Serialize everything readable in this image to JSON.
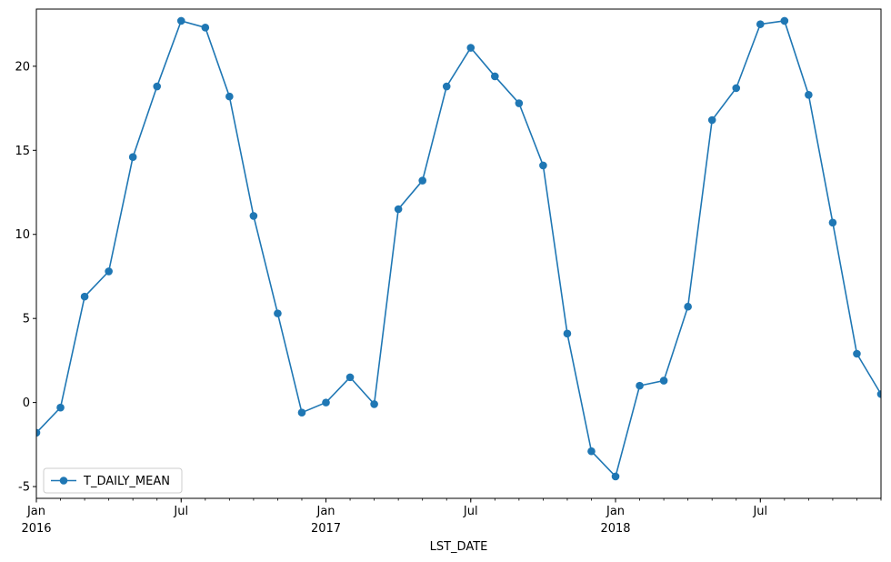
{
  "chart_data": {
    "type": "line",
    "xlabel": "LST_DATE",
    "ylabel": "",
    "x_range": [
      "2016-01",
      "2018-12"
    ],
    "ylim": [
      -5.7,
      23.4
    ],
    "y_ticks": [
      -5,
      0,
      5,
      10,
      15,
      20
    ],
    "x_major_ticks": [
      {
        "date": "2016-01",
        "label": "Jan",
        "sublabel": "2016"
      },
      {
        "date": "2016-07",
        "label": "Jul",
        "sublabel": ""
      },
      {
        "date": "2017-01",
        "label": "Jan",
        "sublabel": "2017"
      },
      {
        "date": "2017-07",
        "label": "Jul",
        "sublabel": ""
      },
      {
        "date": "2018-01",
        "label": "Jan",
        "sublabel": "2018"
      },
      {
        "date": "2018-07",
        "label": "Jul",
        "sublabel": ""
      }
    ],
    "grid": false,
    "legend": {
      "placement": "lower-left"
    },
    "series": [
      {
        "name": "T_DAILY_MEAN",
        "color": "#1f77b4",
        "marker": "circle",
        "x": [
          "2016-01",
          "2016-02",
          "2016-03",
          "2016-04",
          "2016-05",
          "2016-06",
          "2016-07",
          "2016-08",
          "2016-09",
          "2016-10",
          "2016-11",
          "2016-12",
          "2017-01",
          "2017-02",
          "2017-03",
          "2017-04",
          "2017-05",
          "2017-06",
          "2017-07",
          "2017-08",
          "2017-09",
          "2017-10",
          "2017-11",
          "2017-12",
          "2018-01",
          "2018-02",
          "2018-03",
          "2018-04",
          "2018-05",
          "2018-06",
          "2018-07",
          "2018-08",
          "2018-09",
          "2018-10",
          "2018-11",
          "2018-12"
        ],
        "values": [
          -1.8,
          -0.3,
          6.3,
          7.8,
          14.6,
          18.8,
          22.7,
          22.3,
          18.2,
          11.1,
          5.3,
          -0.6,
          0.0,
          1.5,
          -0.1,
          11.5,
          13.2,
          18.8,
          21.1,
          19.4,
          17.8,
          14.1,
          4.1,
          -2.9,
          -4.4,
          1.0,
          1.3,
          5.7,
          16.8,
          18.7,
          22.5,
          22.7,
          18.3,
          10.7,
          2.9,
          0.5
        ]
      }
    ]
  }
}
